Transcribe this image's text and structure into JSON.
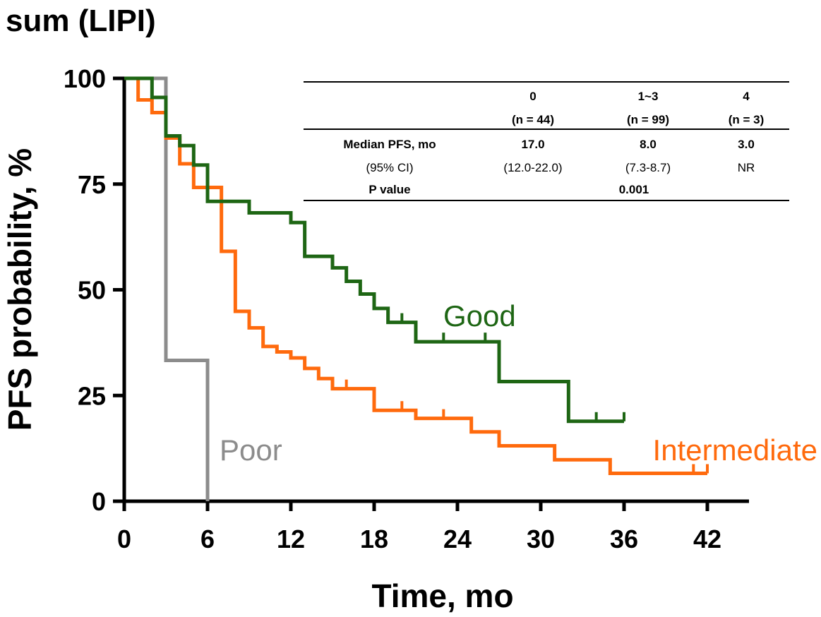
{
  "chart_data": {
    "type": "line",
    "subtype": "kaplan-meier step",
    "title": "sum (LIPI)",
    "xlabel": "Time, mo",
    "ylabel": "PFS probability, %",
    "xlim": [
      0,
      45
    ],
    "ylim": [
      0,
      100
    ],
    "xticks": [
      0,
      6,
      12,
      18,
      24,
      30,
      36,
      42
    ],
    "yticks": [
      0,
      25,
      50,
      75,
      100
    ],
    "series": [
      {
        "name": "Good",
        "color": "#1e6614",
        "steps": [
          [
            0,
            100
          ],
          [
            2,
            95.5
          ],
          [
            3,
            86.4
          ],
          [
            4,
            84.1
          ],
          [
            5,
            79.5
          ],
          [
            6,
            70.9
          ],
          [
            9,
            68.2
          ],
          [
            12,
            65.9
          ],
          [
            13,
            57.9
          ],
          [
            15,
            55.2
          ],
          [
            16,
            52.0
          ],
          [
            17,
            49.0
          ],
          [
            18,
            45.6
          ],
          [
            19,
            42.3
          ],
          [
            21,
            37.7
          ],
          [
            27,
            28.3
          ],
          [
            32,
            18.9
          ],
          [
            36,
            18.9
          ]
        ],
        "end": 36,
        "censored": [
          [
            20,
            42.3
          ],
          [
            23,
            37.7
          ],
          [
            26,
            37.7
          ],
          [
            34,
            18.9
          ],
          [
            36,
            18.9
          ]
        ]
      },
      {
        "name": "Intermediate",
        "color": "#ff6a0d",
        "steps": [
          [
            0,
            100
          ],
          [
            1,
            94.9
          ],
          [
            2,
            91.9
          ],
          [
            3,
            85.9
          ],
          [
            4,
            79.8
          ],
          [
            5,
            74.2
          ],
          [
            7,
            59.1
          ],
          [
            8,
            44.9
          ],
          [
            9,
            41.0
          ],
          [
            10,
            36.6
          ],
          [
            11,
            35.3
          ],
          [
            12,
            33.9
          ],
          [
            13,
            31.4
          ],
          [
            14,
            29.0
          ],
          [
            15,
            26.6
          ],
          [
            18,
            21.5
          ],
          [
            21,
            19.6
          ],
          [
            25,
            16.4
          ],
          [
            27,
            13.1
          ],
          [
            31,
            9.8
          ],
          [
            35,
            6.6
          ],
          [
            42,
            6.6
          ]
        ],
        "end": 42,
        "censored": [
          [
            16,
            26.6
          ],
          [
            20,
            21.5
          ],
          [
            23,
            19.6
          ],
          [
            41,
            6.6
          ],
          [
            42,
            6.6
          ]
        ]
      },
      {
        "name": "Poor",
        "color": "#8c8c8c",
        "steps": [
          [
            0,
            100
          ],
          [
            3,
            33.3
          ],
          [
            6,
            0
          ]
        ],
        "end": 6,
        "censored": []
      }
    ],
    "table": {
      "columns": [
        "",
        "0",
        "1~3",
        "4"
      ],
      "n_row": [
        "",
        "(n = 44)",
        "(n = 99)",
        "(n = 3)"
      ],
      "rows": [
        [
          "Median PFS, mo",
          "17.0",
          "8.0",
          "3.0"
        ],
        [
          "(95% CI)",
          "(12.0-22.0)",
          "(7.3-8.7)",
          "NR"
        ],
        [
          "P value",
          "",
          "0.001",
          ""
        ]
      ]
    }
  }
}
